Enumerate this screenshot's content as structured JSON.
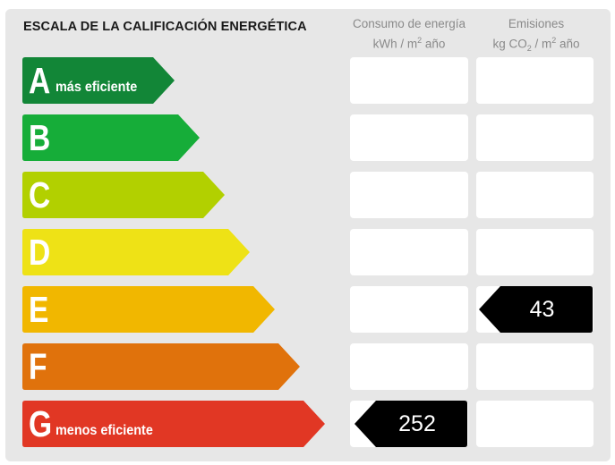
{
  "title": "ESCALA DE LA CALIFICACIÓN ENERGÉTICA",
  "consumo_header": {
    "line1": "Consumo de energía",
    "line2_pre": "kWh / m",
    "line2_sup": "2",
    "line2_post": " año"
  },
  "emisiones_header": {
    "line1": "Emisiones",
    "line2_pre": "kg CO",
    "line2_sub": "2",
    "line2_mid": " / m",
    "line2_sup": "2",
    "line2_post": " año"
  },
  "classes": [
    {
      "letter": "A",
      "label": "más eficiente",
      "color": "#128637"
    },
    {
      "letter": "B",
      "label": "",
      "color": "#16ad39"
    },
    {
      "letter": "C",
      "label": "",
      "color": "#b2d000"
    },
    {
      "letter": "D",
      "label": "",
      "color": "#eee216"
    },
    {
      "letter": "E",
      "label": "",
      "color": "#f1b700"
    },
    {
      "letter": "F",
      "label": "",
      "color": "#e0720c"
    },
    {
      "letter": "G",
      "label": "menos eficiente",
      "color": "#e13724"
    }
  ],
  "consumo": {
    "class": "G",
    "value": "252"
  },
  "emisiones": {
    "class": "E",
    "value": "43"
  },
  "indicator_color": "#000000"
}
